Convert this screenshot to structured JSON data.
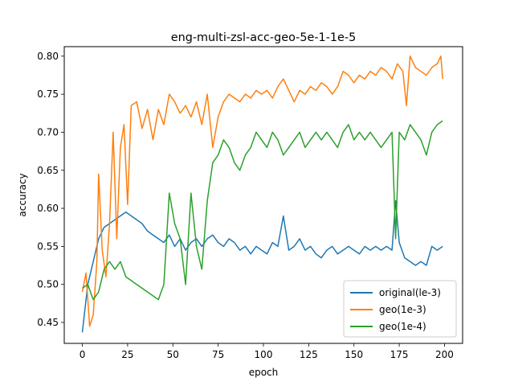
{
  "chart_data": {
    "type": "line",
    "title": "eng-multi-zsl-acc-geo-5e-1-1e-5",
    "xlabel": "epoch",
    "ylabel": "accuracy",
    "xlim": [
      -10,
      210
    ],
    "ylim": [
      0.4225,
      0.8125
    ],
    "xticks": [
      0,
      25,
      50,
      75,
      100,
      125,
      150,
      175,
      200
    ],
    "yticks": [
      0.45,
      0.5,
      0.55,
      0.6,
      0.65,
      0.7,
      0.75,
      0.8
    ],
    "ytick_labels": [
      "0.45",
      "0.50",
      "0.55",
      "0.60",
      "0.65",
      "0.70",
      "0.75",
      "0.80"
    ],
    "grid": false,
    "legend_position": "lower-right",
    "series": [
      {
        "name": "original(le-3)",
        "color": "#1f77b4",
        "points": [
          [
            0,
            0.437
          ],
          [
            3,
            0.5
          ],
          [
            6,
            0.53
          ],
          [
            9,
            0.56
          ],
          [
            12,
            0.575
          ],
          [
            15,
            0.58
          ],
          [
            18,
            0.585
          ],
          [
            21,
            0.59
          ],
          [
            24,
            0.595
          ],
          [
            27,
            0.59
          ],
          [
            30,
            0.585
          ],
          [
            33,
            0.58
          ],
          [
            36,
            0.57
          ],
          [
            39,
            0.565
          ],
          [
            42,
            0.56
          ],
          [
            45,
            0.555
          ],
          [
            48,
            0.565
          ],
          [
            51,
            0.55
          ],
          [
            54,
            0.56
          ],
          [
            57,
            0.545
          ],
          [
            60,
            0.555
          ],
          [
            63,
            0.56
          ],
          [
            66,
            0.55
          ],
          [
            69,
            0.56
          ],
          [
            72,
            0.565
          ],
          [
            75,
            0.555
          ],
          [
            78,
            0.55
          ],
          [
            81,
            0.56
          ],
          [
            84,
            0.555
          ],
          [
            87,
            0.545
          ],
          [
            90,
            0.55
          ],
          [
            93,
            0.54
          ],
          [
            96,
            0.55
          ],
          [
            99,
            0.545
          ],
          [
            102,
            0.54
          ],
          [
            105,
            0.555
          ],
          [
            108,
            0.55
          ],
          [
            111,
            0.59
          ],
          [
            114,
            0.545
          ],
          [
            117,
            0.55
          ],
          [
            120,
            0.56
          ],
          [
            123,
            0.545
          ],
          [
            126,
            0.55
          ],
          [
            129,
            0.54
          ],
          [
            132,
            0.535
          ],
          [
            135,
            0.545
          ],
          [
            138,
            0.55
          ],
          [
            141,
            0.54
          ],
          [
            144,
            0.545
          ],
          [
            147,
            0.55
          ],
          [
            150,
            0.545
          ],
          [
            153,
            0.54
          ],
          [
            156,
            0.55
          ],
          [
            159,
            0.545
          ],
          [
            162,
            0.55
          ],
          [
            165,
            0.545
          ],
          [
            168,
            0.55
          ],
          [
            171,
            0.545
          ],
          [
            173,
            0.61
          ],
          [
            175,
            0.555
          ],
          [
            178,
            0.535
          ],
          [
            181,
            0.53
          ],
          [
            184,
            0.525
          ],
          [
            187,
            0.53
          ],
          [
            190,
            0.525
          ],
          [
            193,
            0.55
          ],
          [
            196,
            0.545
          ],
          [
            199,
            0.55
          ]
        ]
      },
      {
        "name": "geo(1e-3)",
        "color": "#ff7f0e",
        "points": [
          [
            0,
            0.49
          ],
          [
            2,
            0.515
          ],
          [
            4,
            0.445
          ],
          [
            6,
            0.46
          ],
          [
            8,
            0.53
          ],
          [
            9,
            0.645
          ],
          [
            11,
            0.545
          ],
          [
            13,
            0.51
          ],
          [
            15,
            0.58
          ],
          [
            17,
            0.7
          ],
          [
            19,
            0.56
          ],
          [
            21,
            0.68
          ],
          [
            23,
            0.71
          ],
          [
            25,
            0.605
          ],
          [
            27,
            0.735
          ],
          [
            30,
            0.74
          ],
          [
            33,
            0.705
          ],
          [
            36,
            0.73
          ],
          [
            39,
            0.69
          ],
          [
            42,
            0.73
          ],
          [
            45,
            0.71
          ],
          [
            48,
            0.75
          ],
          [
            51,
            0.74
          ],
          [
            54,
            0.725
          ],
          [
            57,
            0.735
          ],
          [
            60,
            0.72
          ],
          [
            63,
            0.74
          ],
          [
            66,
            0.71
          ],
          [
            69,
            0.75
          ],
          [
            72,
            0.68
          ],
          [
            75,
            0.72
          ],
          [
            78,
            0.74
          ],
          [
            81,
            0.75
          ],
          [
            84,
            0.745
          ],
          [
            87,
            0.74
          ],
          [
            90,
            0.75
          ],
          [
            93,
            0.745
          ],
          [
            96,
            0.755
          ],
          [
            99,
            0.75
          ],
          [
            102,
            0.755
          ],
          [
            105,
            0.745
          ],
          [
            108,
            0.76
          ],
          [
            111,
            0.77
          ],
          [
            114,
            0.755
          ],
          [
            117,
            0.74
          ],
          [
            120,
            0.755
          ],
          [
            123,
            0.75
          ],
          [
            126,
            0.76
          ],
          [
            129,
            0.755
          ],
          [
            132,
            0.765
          ],
          [
            135,
            0.76
          ],
          [
            138,
            0.75
          ],
          [
            141,
            0.76
          ],
          [
            144,
            0.78
          ],
          [
            147,
            0.775
          ],
          [
            150,
            0.765
          ],
          [
            153,
            0.775
          ],
          [
            156,
            0.77
          ],
          [
            159,
            0.78
          ],
          [
            162,
            0.775
          ],
          [
            165,
            0.785
          ],
          [
            168,
            0.78
          ],
          [
            171,
            0.77
          ],
          [
            174,
            0.79
          ],
          [
            177,
            0.78
          ],
          [
            179,
            0.735
          ],
          [
            181,
            0.8
          ],
          [
            184,
            0.785
          ],
          [
            187,
            0.78
          ],
          [
            190,
            0.775
          ],
          [
            193,
            0.785
          ],
          [
            196,
            0.79
          ],
          [
            198,
            0.8
          ],
          [
            199,
            0.77
          ]
        ]
      },
      {
        "name": "geo(1e-4)",
        "color": "#2ca02c",
        "points": [
          [
            0,
            0.495
          ],
          [
            3,
            0.5
          ],
          [
            6,
            0.48
          ],
          [
            9,
            0.49
          ],
          [
            12,
            0.52
          ],
          [
            15,
            0.53
          ],
          [
            18,
            0.52
          ],
          [
            21,
            0.53
          ],
          [
            24,
            0.51
          ],
          [
            27,
            0.505
          ],
          [
            30,
            0.5
          ],
          [
            33,
            0.495
          ],
          [
            36,
            0.49
          ],
          [
            39,
            0.485
          ],
          [
            42,
            0.48
          ],
          [
            45,
            0.5
          ],
          [
            48,
            0.62
          ],
          [
            51,
            0.58
          ],
          [
            54,
            0.56
          ],
          [
            57,
            0.5
          ],
          [
            60,
            0.62
          ],
          [
            63,
            0.55
          ],
          [
            66,
            0.52
          ],
          [
            69,
            0.61
          ],
          [
            72,
            0.66
          ],
          [
            75,
            0.67
          ],
          [
            78,
            0.69
          ],
          [
            81,
            0.68
          ],
          [
            84,
            0.66
          ],
          [
            87,
            0.65
          ],
          [
            90,
            0.67
          ],
          [
            93,
            0.68
          ],
          [
            96,
            0.7
          ],
          [
            99,
            0.69
          ],
          [
            102,
            0.68
          ],
          [
            105,
            0.7
          ],
          [
            108,
            0.69
          ],
          [
            111,
            0.67
          ],
          [
            114,
            0.68
          ],
          [
            117,
            0.69
          ],
          [
            120,
            0.7
          ],
          [
            123,
            0.68
          ],
          [
            126,
            0.69
          ],
          [
            129,
            0.7
          ],
          [
            132,
            0.69
          ],
          [
            135,
            0.7
          ],
          [
            138,
            0.69
          ],
          [
            141,
            0.68
          ],
          [
            144,
            0.7
          ],
          [
            147,
            0.71
          ],
          [
            150,
            0.69
          ],
          [
            153,
            0.7
          ],
          [
            156,
            0.69
          ],
          [
            159,
            0.7
          ],
          [
            162,
            0.69
          ],
          [
            165,
            0.68
          ],
          [
            168,
            0.69
          ],
          [
            171,
            0.7
          ],
          [
            173,
            0.56
          ],
          [
            175,
            0.7
          ],
          [
            178,
            0.69
          ],
          [
            181,
            0.71
          ],
          [
            184,
            0.7
          ],
          [
            187,
            0.69
          ],
          [
            190,
            0.67
          ],
          [
            193,
            0.7
          ],
          [
            196,
            0.71
          ],
          [
            199,
            0.715
          ]
        ]
      }
    ]
  }
}
